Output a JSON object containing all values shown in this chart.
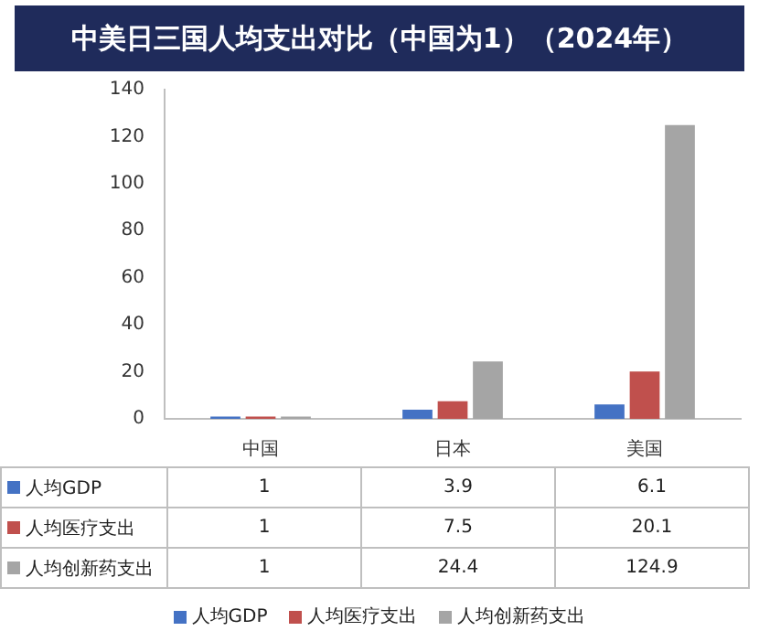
{
  "chart_data": {
    "type": "bar",
    "title": "中美日三国人均支出对比（中国为1）（2024年）",
    "categories": [
      "中国",
      "日本",
      "美国"
    ],
    "series": [
      {
        "name": "人均GDP",
        "color": "#4472c4",
        "values": [
          1,
          3.9,
          6.1
        ]
      },
      {
        "name": "人均医疗支出",
        "color": "#c0504d",
        "values": [
          1,
          7.5,
          20.1
        ]
      },
      {
        "name": "人均创新药支出",
        "color": "#a5a5a5",
        "values": [
          1,
          24.4,
          124.9
        ]
      }
    ],
    "ylim": [
      0,
      140
    ],
    "yticks": [
      0,
      20,
      40,
      60,
      80,
      100,
      120,
      140
    ],
    "grid": false,
    "legend": "bottom",
    "data_labels": true
  }
}
